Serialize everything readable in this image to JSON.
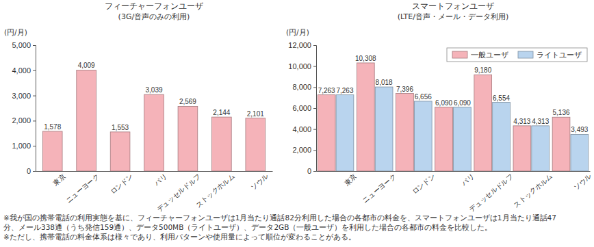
{
  "chart_data": [
    {
      "type": "bar",
      "title": "フィーチャーフォンユーザ",
      "subtitle": "(3G/音声のみの利用)",
      "y_label": "(円/月)",
      "categories": [
        "東京",
        "ニューヨーク",
        "ロンドン",
        "パリ",
        "デュッセルドルフ",
        "ストックホルム",
        "ソウル"
      ],
      "values": [
        1578,
        4009,
        1553,
        3039,
        2569,
        2144,
        2101
      ],
      "value_labels": [
        "1,578",
        "4,009",
        "1,553",
        "3,039",
        "2,569",
        "2,144",
        "2,101"
      ],
      "color": "#f5b3b9",
      "ylim": [
        0,
        5000
      ],
      "yticks": [
        0,
        {
          "value": 1000,
          "label": "1,000"
        },
        {
          "value": 2000,
          "label": "2,000"
        },
        {
          "value": 3000,
          "label": "3,000"
        },
        {
          "value": 4000,
          "label": "4,000"
        },
        {
          "value": 5000,
          "label": "5,000"
        }
      ],
      "grid": false,
      "data_labels": true
    },
    {
      "type": "bar",
      "title": "スマートフォンユーザ",
      "subtitle": "(LTE/音声・メール・データ利用)",
      "y_label": "(円/月)",
      "categories": [
        "東京",
        "ニューヨーク",
        "ロンドン",
        "パリ",
        "デュッセルドルフ",
        "ストックホルム",
        "ソウル"
      ],
      "series": [
        {
          "name": "一般ユーザ",
          "color": "#f5b3b9",
          "values": [
            7263,
            10308,
            7396,
            6090,
            9180,
            4313,
            5136
          ],
          "value_labels": [
            "7,263",
            "10,308",
            "7,396",
            "6,090",
            "9,180",
            "4,313",
            "5,136"
          ]
        },
        {
          "name": "ライトユーザ",
          "color": "#b9d4ee",
          "values": [
            7263,
            8018,
            6656,
            6090,
            6554,
            4313,
            3493
          ],
          "value_labels": [
            "7,263",
            "8,018",
            "6,656",
            "6,090",
            "6,554",
            "4,313",
            "3,493"
          ]
        }
      ],
      "ylim": [
        0,
        12000
      ],
      "yticks": [
        0,
        {
          "value": 2000,
          "label": "2,000"
        },
        {
          "value": 4000,
          "label": "4,000"
        },
        {
          "value": 6000,
          "label": "6,000"
        },
        {
          "value": 8000,
          "label": "8,000"
        },
        {
          "value": 10000,
          "label": "10,000"
        },
        {
          "value": 12000,
          "label": "12,000"
        }
      ],
      "grid": false,
      "data_labels": true,
      "legend": "top-right"
    }
  ],
  "notes": [
    "※我が国の携帯電話の利用実態を基に、フィーチャーフォンユーザは1月当たり通話82分利用した場合の各都市の料金を、スマートフォンユーザは1月当たり通話47",
    "分、メール338通（うち発信159通）、データ500MB（ライトユーザ）、データ2GB（一般ユーザ）を利用した場合の各都市の料金を比較した。",
    "※ただし、携帯電話の料金体系は様々であり、利用パターンや使用量によって順位が変わることがある。"
  ]
}
